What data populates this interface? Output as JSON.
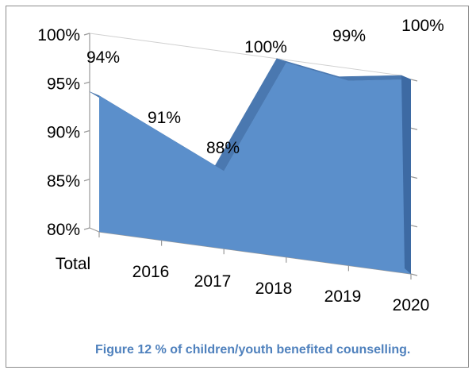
{
  "caption": "Figure 12 % of children/youth benefited counselling.",
  "colors": {
    "area_front": "#5b8fcb",
    "area_top": "#4a78b0",
    "area_side": "#3d6aa3",
    "axis": "#9a9a9a"
  },
  "chart_data": {
    "type": "area",
    "categories": [
      "Total",
      "2016",
      "2017",
      "2018",
      "2019",
      "2020"
    ],
    "values": [
      94,
      91,
      88,
      100,
      99,
      100
    ],
    "data_labels": [
      "94%",
      "91%",
      "88%",
      "100%",
      "99%",
      "100%"
    ],
    "y_tick_labels": [
      "100%",
      "95%",
      "90%",
      "85%",
      "80%"
    ],
    "ylim": [
      80,
      100
    ],
    "y_ticks": [
      100,
      95,
      90,
      85,
      80
    ],
    "grid": false,
    "legend": "none",
    "style": "3d"
  }
}
